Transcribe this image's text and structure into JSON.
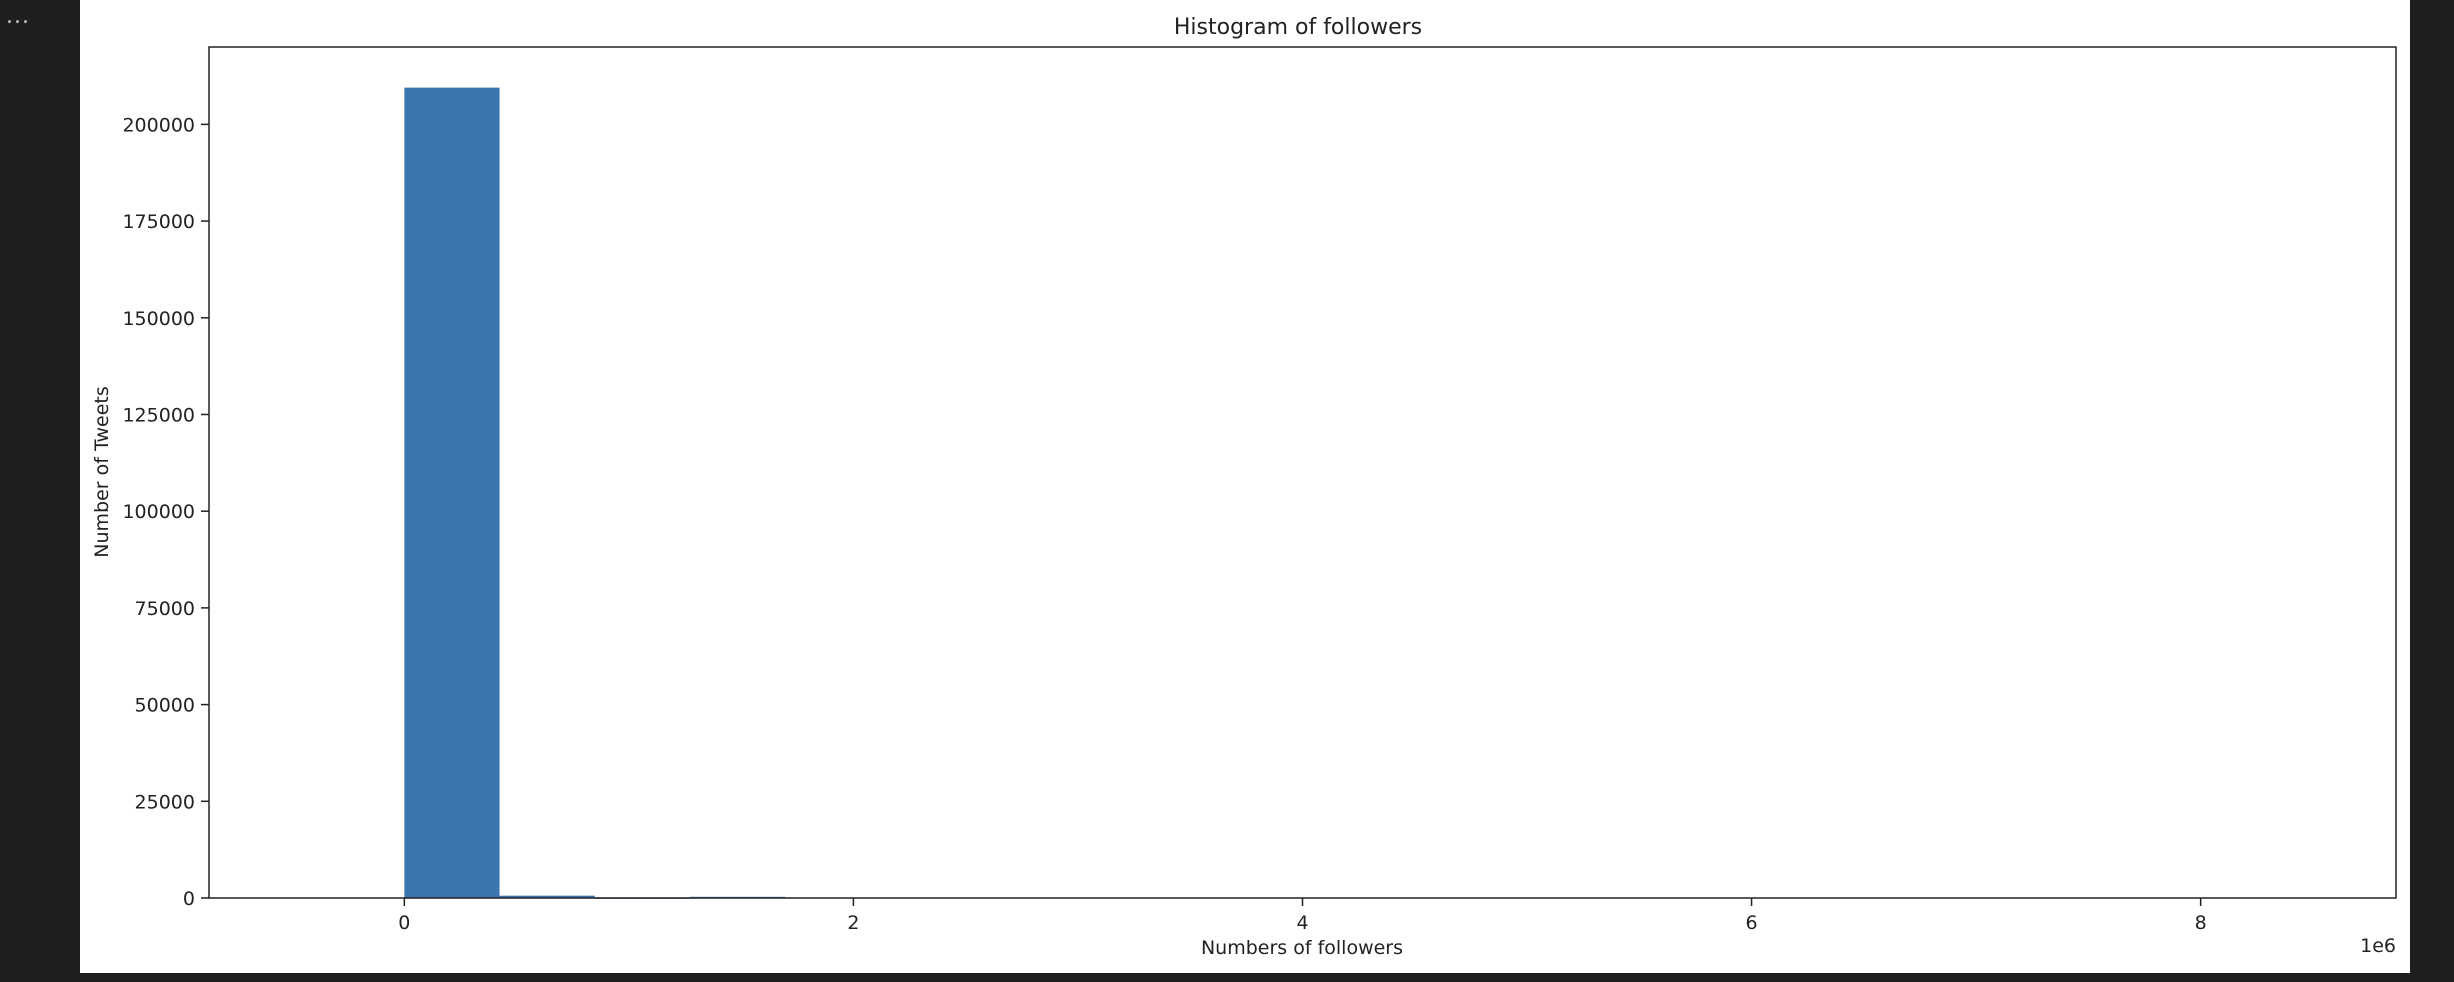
{
  "ui": {
    "more_label": "..."
  },
  "chart_data": {
    "type": "bar",
    "title": "Histogram of followers",
    "xlabel": "Numbers of followers",
    "ylabel": "Number of Tweets",
    "x_offset_label": "1e6",
    "x_unit_multiplier": 1000000,
    "xlim": [
      -0.87,
      8.87
    ],
    "ylim": [
      0,
      220000
    ],
    "xticks": [
      0,
      2,
      4,
      6,
      8
    ],
    "xtick_labels": [
      "0",
      "2",
      "4",
      "6",
      "8"
    ],
    "yticks": [
      0,
      25000,
      50000,
      75000,
      100000,
      125000,
      150000,
      175000,
      200000
    ],
    "ytick_labels": [
      "0",
      "25000",
      "50000",
      "75000",
      "100000",
      "125000",
      "150000",
      "175000",
      "200000"
    ],
    "bin_edges": [
      0,
      0.424,
      0.848,
      1.272,
      1.696,
      2.12,
      2.544,
      2.968,
      3.392,
      3.816,
      4.24,
      4.664,
      5.088,
      5.512,
      5.936,
      6.36,
      6.784,
      7.208,
      7.632,
      8.056,
      8.48
    ],
    "values": [
      209500,
      600,
      150,
      300,
      0,
      0,
      0,
      0,
      0,
      0,
      0,
      0,
      0,
      0,
      0,
      0,
      0,
      0,
      0,
      0
    ],
    "bar_color": "#3a75b0",
    "grid": false,
    "legend": false
  }
}
